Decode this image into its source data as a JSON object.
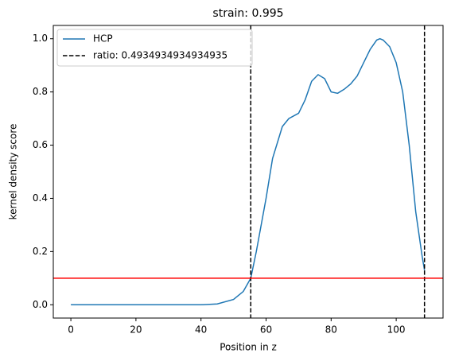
{
  "chart_data": {
    "type": "line",
    "title": "strain: 0.995",
    "xlabel": "Position in z",
    "ylabel": "kernel density score",
    "x": [
      0,
      10,
      20,
      30,
      40,
      45,
      50,
      53,
      55.3,
      57,
      60,
      62,
      65,
      67,
      70,
      72,
      74,
      76,
      78,
      80,
      82,
      84,
      86,
      88,
      90,
      92,
      94,
      95,
      96,
      98,
      100,
      102,
      104,
      106,
      108,
      108.7
    ],
    "series": [
      {
        "name": "HCP",
        "color": "#1f77b4",
        "values": [
          0,
          0,
          0,
          0,
          0,
          0.003,
          0.02,
          0.05,
          0.1,
          0.2,
          0.4,
          0.55,
          0.67,
          0.7,
          0.72,
          0.77,
          0.84,
          0.865,
          0.85,
          0.8,
          0.795,
          0.81,
          0.83,
          0.86,
          0.91,
          0.96,
          0.995,
          1.0,
          0.995,
          0.97,
          0.91,
          0.8,
          0.6,
          0.35,
          0.18,
          0.13
        ]
      }
    ],
    "vlines": {
      "name": "ratio: 0.4934934934934935",
      "color": "#000000",
      "values": [
        55.3,
        108.7
      ]
    },
    "hline": {
      "value": 0.1,
      "color": "#ff0000"
    },
    "xlim": [
      -5.4,
      114.4
    ],
    "ylim": [
      -0.05,
      1.05
    ],
    "xticks": [
      0,
      20,
      40,
      60,
      80,
      100
    ],
    "yticks": [
      {
        "value": 0,
        "label": "0.0"
      },
      {
        "value": 0.2,
        "label": "0.2"
      },
      {
        "value": 0.4,
        "label": "0.4"
      },
      {
        "value": 0.6,
        "label": "0.6"
      },
      {
        "value": 0.8,
        "label": "0.8"
      },
      {
        "value": 1.0,
        "label": "1.0"
      }
    ],
    "legend": "upper left",
    "grid": false
  }
}
